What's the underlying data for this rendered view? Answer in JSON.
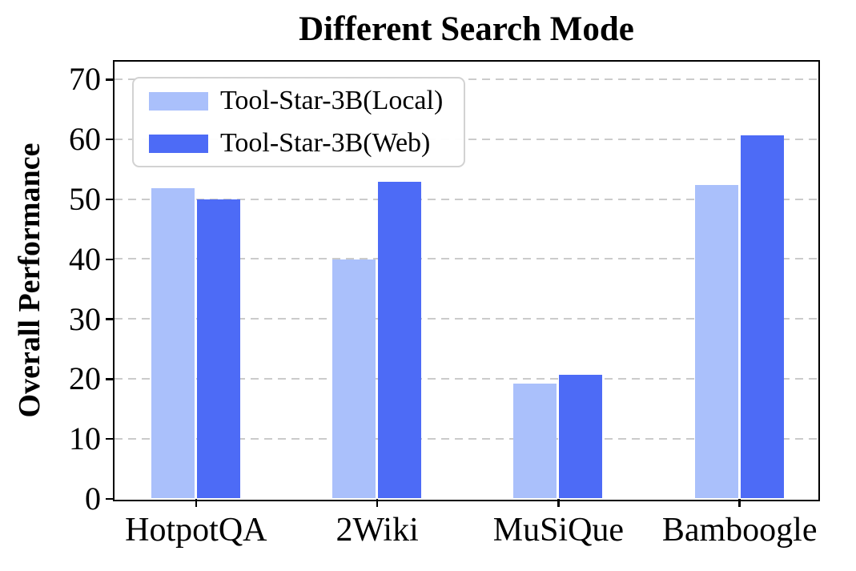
{
  "figure": {
    "title": "Different Search Mode",
    "ylabel": "Overall Performance"
  },
  "legend": {
    "items": [
      {
        "label": "Tool-Star-3B(Local)",
        "color": "#aac0fb"
      },
      {
        "label": "Tool-Star-3B(Web)",
        "color": "#4d6bf6"
      }
    ]
  },
  "chart_data": {
    "type": "bar",
    "title": "Different Search Mode",
    "xlabel": "",
    "ylabel": "Overall Performance",
    "categories": [
      "HotpotQA",
      "2Wiki",
      "MuSiQue",
      "Bamboogle"
    ],
    "series": [
      {
        "name": "Tool-Star-3B(Local)",
        "color": "#aac0fb",
        "values": [
          51.8,
          39.9,
          19.2,
          52.4
        ]
      },
      {
        "name": "Tool-Star-3B(Web)",
        "color": "#4d6bf6",
        "values": [
          50.0,
          52.9,
          20.6,
          60.6
        ]
      }
    ],
    "ylim": [
      0,
      73
    ],
    "yticks": [
      0,
      10,
      20,
      30,
      40,
      50,
      60,
      70
    ],
    "grid": "horizontal-dashed",
    "gridline_color": "#cbcbcb",
    "legend_position": "upper-left"
  }
}
